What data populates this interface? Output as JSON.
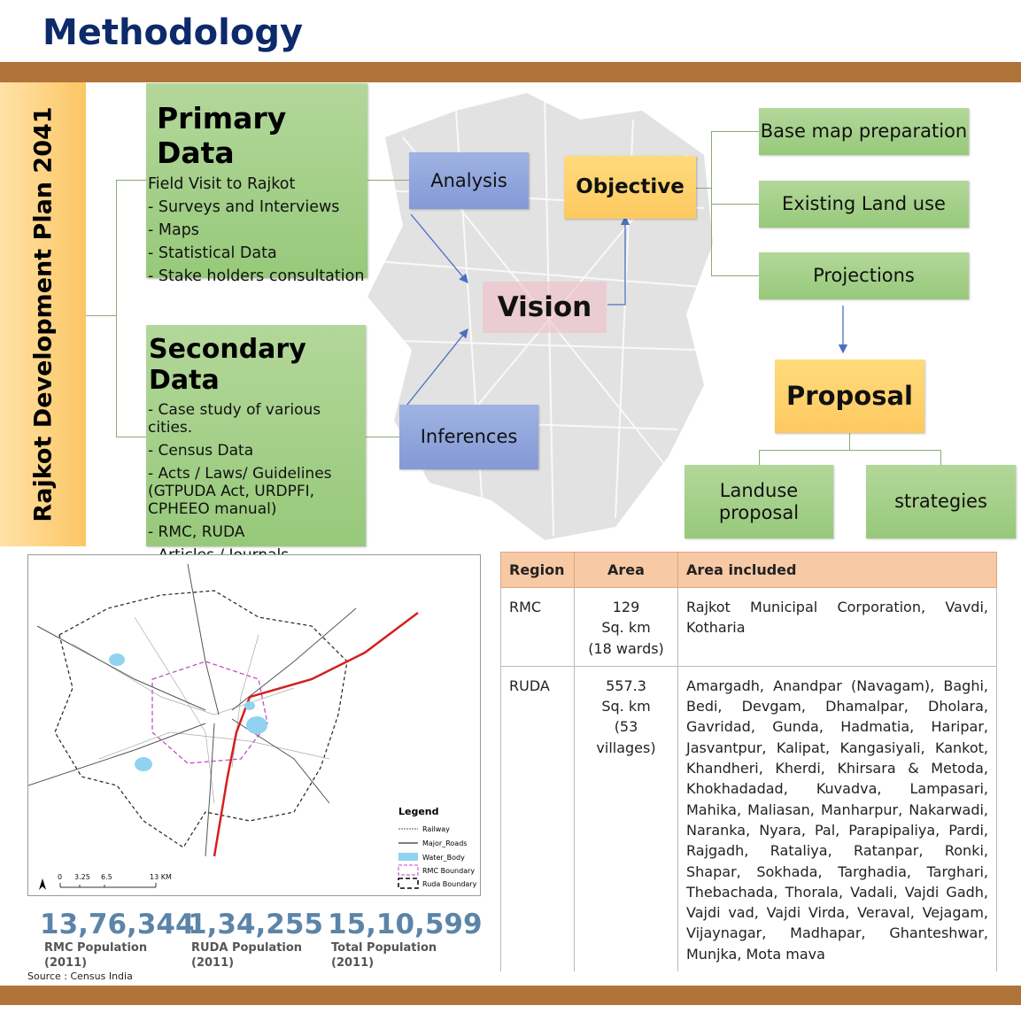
{
  "title": "Methodology",
  "side_label": "Rajkot Development Plan 2041",
  "primary": {
    "heading": "Primary Data",
    "items": [
      "Field Visit to Rajkot",
      "- Surveys and Interviews",
      "- Maps",
      "- Statistical Data",
      "- Stake holders consultation"
    ]
  },
  "secondary": {
    "heading": "Secondary Data",
    "items": [
      "- Case study of various cities.",
      "- Census Data",
      "- Acts / Laws/ Guidelines (GTPUDA Act, URDPFI, CPHEEO manual)",
      "- RMC, RUDA",
      "- Articles / Journals"
    ]
  },
  "flow": {
    "analysis": "Analysis",
    "inferences": "Inferences",
    "vision": "Vision",
    "objective": "Objective",
    "base_map": "Base map preparation",
    "existing_land_use": "Existing Land use",
    "projections": "Projections",
    "proposal": "Proposal",
    "landuse_proposal": "Landuse proposal",
    "strategies": "strategies"
  },
  "map": {
    "legend_title": "Legend",
    "legend": [
      "Railway",
      "Major_Roads",
      "Water_Body",
      "RMC Boundary",
      "Ruda Boundary"
    ],
    "scale": [
      "0",
      "3.25",
      "6.5",
      "13 KM"
    ],
    "north": "N"
  },
  "stats": [
    {
      "value": "13,76,344",
      "label": "RMC Population",
      "year": "(2011)"
    },
    {
      "value": "1,34,255",
      "label": "RUDA Population",
      "year": "(2011)"
    },
    {
      "value": "15,10,599",
      "label": "Total Population",
      "year": "(2011)"
    }
  ],
  "source": "Source : Census India",
  "table": {
    "headers": [
      "Region",
      "Area",
      "Area included"
    ],
    "rows": [
      {
        "region": "RMC",
        "area": [
          "129",
          "Sq. km",
          "(18 wards)"
        ],
        "included": "Rajkot Municipal Corporation, Vavdi, Kotharia"
      },
      {
        "region": "RUDA",
        "area": [
          "557.3",
          "Sq. km",
          "(53 villages)"
        ],
        "included": "Amargadh, Anandpar (Navagam), Baghi, Bedi, Devgam, Dhamalpar, Dholara, Gavridad, Gunda, Hadmatia, Haripar, Jasvantpur, Kalipat, Kangasiyali, Kankot, Khandheri, Kherdi, Khirsara & Metoda, Khokhadadad, Kuvadva, Lampasari, Mahika, Maliasan, Manharpur, Nakarwadi, Naranka, Nyara, Pal, Parapipaliya, Pardi, Rajgadh, Rataliya, Ratanpar, Ronki, Shapar, Sokhada, Targhadia, Targhari, Thebachada, Thorala, Vadali, Vajdi Gadh, Vajdi vad, Vajdi Virda, Veraval, Vejagam, Vijaynagar, Madhapar, Ghanteshwar, Munjka, Mota mava"
      }
    ]
  },
  "colors": {
    "title": "#0d2a6a",
    "bar": "#b0733a",
    "green": "#a9d18e",
    "blue": "#8fa6db",
    "orange": "#ffd56e",
    "stat": "#5b84a8",
    "table_header": "#f8c9a5",
    "railway_red": "#d42020"
  }
}
